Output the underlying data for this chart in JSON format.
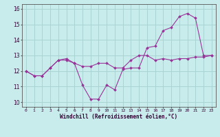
{
  "xlabel": "Windchill (Refroidissement éolien,°C)",
  "background_color": "#c8ecec",
  "grid_color": "#aad4d4",
  "line_color": "#993399",
  "x_ticks": [
    0,
    1,
    2,
    3,
    4,
    5,
    6,
    7,
    8,
    9,
    10,
    11,
    12,
    13,
    14,
    15,
    16,
    17,
    18,
    19,
    20,
    21,
    22,
    23
  ],
  "y_ticks": [
    10,
    11,
    12,
    13,
    14,
    15,
    16
  ],
  "ylim": [
    9.7,
    16.3
  ],
  "xlim": [
    -0.5,
    23.5
  ],
  "curve1_x": [
    0,
    1,
    2,
    3,
    4,
    5,
    6,
    7,
    8,
    9,
    10,
    11,
    12,
    13,
    14,
    15,
    16,
    17,
    18,
    19,
    20,
    21,
    22,
    23
  ],
  "curve1_y": [
    12.0,
    11.7,
    11.7,
    12.2,
    12.7,
    12.7,
    12.5,
    11.1,
    10.2,
    10.2,
    11.1,
    10.8,
    12.1,
    12.2,
    12.2,
    13.5,
    13.6,
    14.6,
    14.8,
    15.5,
    15.7,
    15.4,
    13.0,
    13.0
  ],
  "curve2_x": [
    0,
    1,
    2,
    3,
    4,
    5,
    6,
    7,
    8,
    9,
    10,
    11,
    12,
    13,
    14,
    15,
    16,
    17,
    18,
    19,
    20,
    21,
    22,
    23
  ],
  "curve2_y": [
    12.0,
    11.7,
    11.7,
    12.2,
    12.7,
    12.8,
    12.5,
    12.3,
    12.3,
    12.5,
    12.5,
    12.2,
    12.2,
    12.7,
    13.0,
    13.0,
    12.7,
    12.8,
    12.7,
    12.8,
    12.8,
    12.9,
    12.9,
    13.0
  ]
}
